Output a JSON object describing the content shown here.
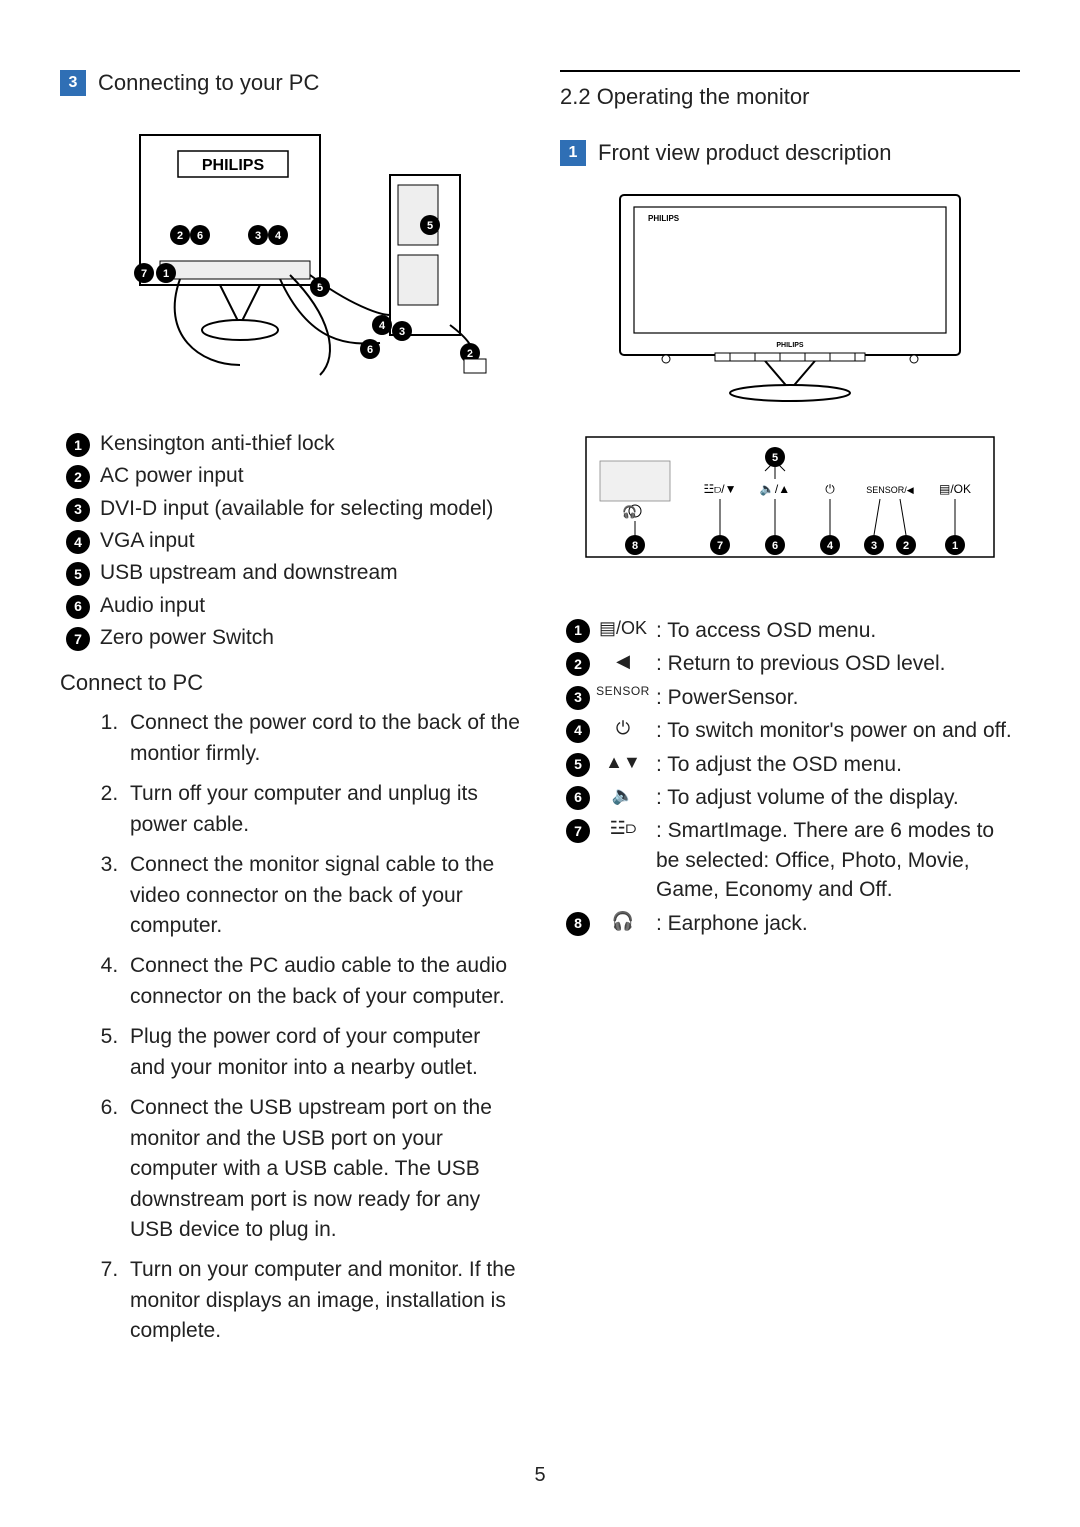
{
  "page_number": "5",
  "left": {
    "step_num": "3",
    "step_title": "Connecting to your PC",
    "connectors": [
      {
        "n": "1",
        "label": "Kensington anti-thief lock"
      },
      {
        "n": "2",
        "label": "AC power input"
      },
      {
        "n": "3",
        "label": "DVI-D input (available for selecting model)"
      },
      {
        "n": "4",
        "label": "VGA input"
      },
      {
        "n": "5",
        "label": "USB upstream and downstream"
      },
      {
        "n": "6",
        "label": "Audio input"
      },
      {
        "n": "7",
        "label": "Zero power Switch"
      }
    ],
    "connect_heading": "Connect to PC",
    "steps": [
      "Connect the power cord to the back of the montior firmly.",
      "Turn off your computer and unplug its power cable.",
      "Connect the monitor signal cable to the video connector on the back of your computer.",
      "Connect the PC audio cable to the audio connector on the back of your computer.",
      "Plug the power cord of your computer and your monitor into a nearby outlet.",
      "Connect the USB upstream port on the monitor and the USB port on your computer with a USB cable. The USB downstream port is now ready for any USB device to plug in.",
      "Turn on your computer and monitor. If the monitor displays an image, installation is complete."
    ],
    "fig_brand": "PHILIPS"
  },
  "right": {
    "sec_title": "2.2 Operating the monitor",
    "step_num": "1",
    "step_title": "Front view product description",
    "buttons": [
      {
        "n": "1",
        "icon": "menu-ok",
        "icon_text": "▤/OK",
        "desc": ": To access OSD menu."
      },
      {
        "n": "2",
        "icon": "left",
        "icon_text": "◀",
        "desc": ": Return to previous OSD level."
      },
      {
        "n": "3",
        "icon": "sensor",
        "icon_text": "SENSOR",
        "desc": ": PowerSensor."
      },
      {
        "n": "4",
        "icon": "power",
        "icon_text": "⏻",
        "desc": ": To switch monitor's power on and off."
      },
      {
        "n": "5",
        "icon": "updown",
        "icon_text": "▲▼",
        "desc": ": To adjust the OSD menu."
      },
      {
        "n": "6",
        "icon": "volume",
        "icon_text": "🔈",
        "desc": ": To adjust volume of the display."
      },
      {
        "n": "7",
        "icon": "smart",
        "icon_text": "☳⫐",
        "desc": ": SmartImage. There are 6 modes to be selected: Office, Photo, Movie, Game, Economy and Off."
      },
      {
        "n": "8",
        "icon": "headphone",
        "icon_text": "🎧",
        "desc": ": Earphone jack."
      }
    ],
    "panel_labels": {
      "sensor": "SENSOR/◀",
      "ok": "▤/OK",
      "smart": "☳⫐/▼",
      "vol": "🔈/▲",
      "power": "⏻"
    }
  },
  "colors": {
    "badge_blue": "#2f6fb5",
    "text": "#222222",
    "line": "#000000",
    "fig_stroke": "#000000",
    "fig_fill": "#ffffff",
    "fig_light": "#e8e8e8"
  }
}
